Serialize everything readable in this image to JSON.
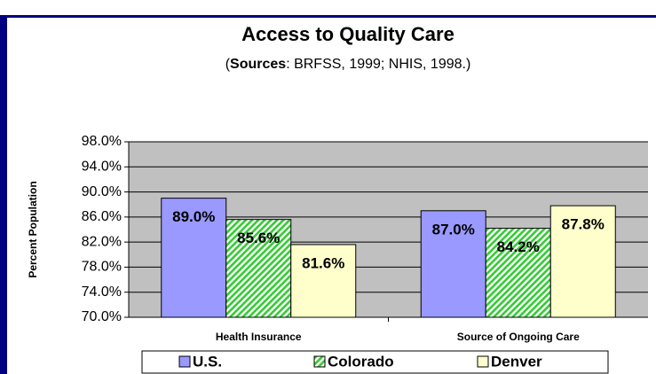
{
  "chart_data": {
    "type": "bar",
    "title": "Access to Quality Care",
    "subtitle_parts": [
      "(",
      "Sources",
      ": BRFSS, 1999; NHIS, 1998.)"
    ],
    "y_label": "Percent Population",
    "categories": [
      "Health Insurance",
      "Source of Ongoing Care"
    ],
    "series": [
      {
        "name": "U.S.",
        "color": "#9999ff",
        "values": [
          89.0,
          87.0
        ],
        "value_labels": [
          "89.0%",
          "87.0%"
        ]
      },
      {
        "name": "Colorado",
        "color": "#33cc33",
        "values": [
          85.6,
          84.2
        ],
        "value_labels": [
          "85.6%",
          "84.2%"
        ]
      },
      {
        "name": "Denver",
        "color": "#ffffcc",
        "values": [
          81.6,
          87.8
        ],
        "value_labels": [
          "81.6%",
          "87.8%"
        ]
      }
    ],
    "ylim": [
      70,
      98
    ],
    "yticks": [
      {
        "value": 70,
        "label": "70.0%"
      },
      {
        "value": 74,
        "label": "74.0%"
      },
      {
        "value": 78,
        "label": "78.0%"
      },
      {
        "value": 82,
        "label": "82.0%"
      },
      {
        "value": 86,
        "label": "86.0%"
      },
      {
        "value": 90,
        "label": "90.0%"
      },
      {
        "value": 94,
        "label": "94.0%"
      },
      {
        "value": 98,
        "label": "98.0%"
      }
    ],
    "grid": true,
    "legend": "bottom"
  }
}
